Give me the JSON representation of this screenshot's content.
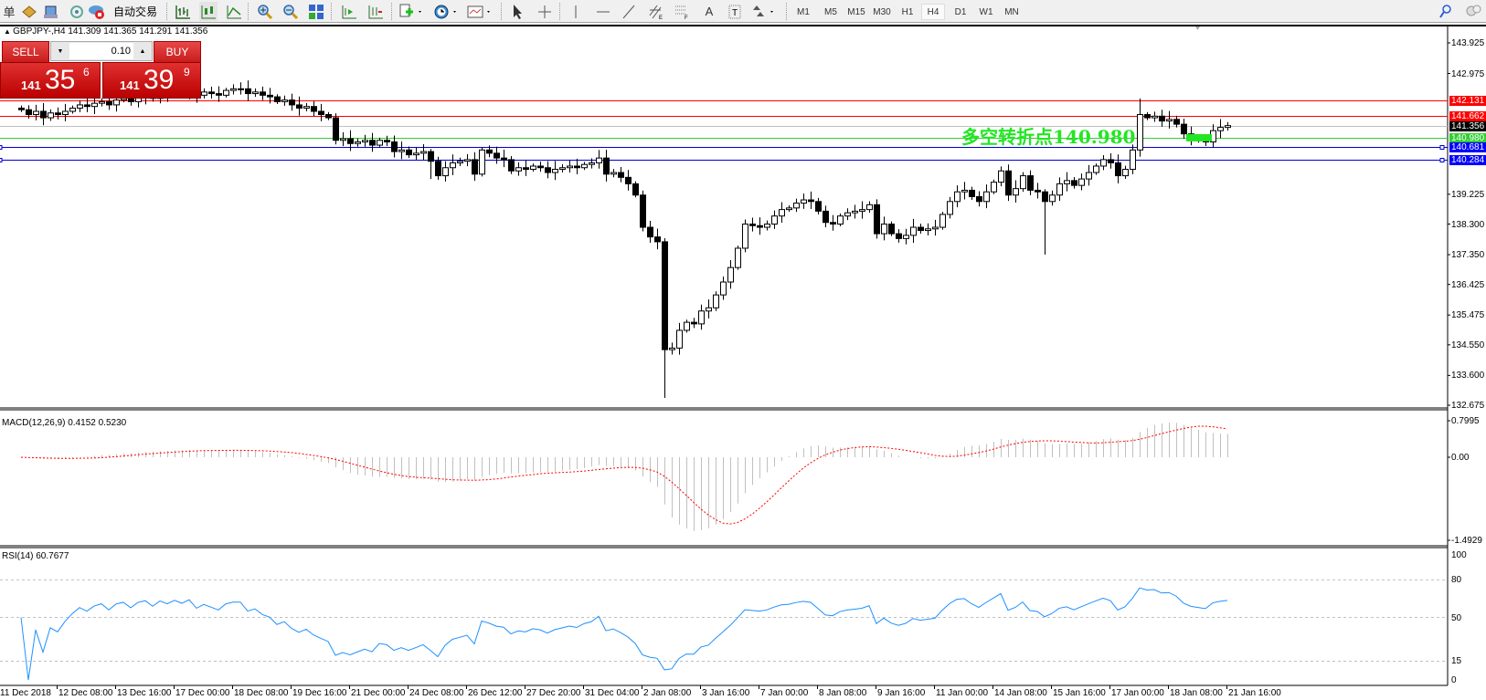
{
  "toolbar": {
    "menu_fragment": "单",
    "auto_trading_label": "自动交易",
    "icons": [
      "folder-icon",
      "profile-icon",
      "signal-icon",
      "auto-trading-icon",
      "bar-chart-icon",
      "candlestick-icon",
      "line-chart-icon",
      "zoom-in-icon",
      "zoom-out-icon",
      "tile-windows-icon",
      "chart-shift-icon",
      "autoscroll-icon",
      "indicators-icon",
      "periodicity-icon",
      "templates-icon",
      "cursor-icon",
      "crosshair-icon",
      "vertical-line-icon",
      "horizontal-line-icon",
      "trendline-icon",
      "channel-icon",
      "fibonacci-icon",
      "text-icon",
      "text-label-icon",
      "arrows-icon",
      "search-icon",
      "community-icon"
    ],
    "periods": [
      "M1",
      "M5",
      "M15",
      "M30",
      "H1",
      "H4",
      "D1",
      "W1",
      "MN"
    ],
    "active_period": "H4"
  },
  "chart": {
    "title": "GBPJPY-,H4  141.309 141.365 141.291 141.356",
    "trade_panel": {
      "sell_label": "SELL",
      "buy_label": "BUY",
      "lot": "0.10",
      "sell_price": {
        "big": "141",
        "main": "35",
        "pip": "6"
      },
      "buy_price": {
        "big": "141",
        "main": "39",
        "pip": "9"
      }
    },
    "pivot_text": "多空转折点140.980",
    "pivot_price": 140.98,
    "price_axis": {
      "max": 143.925,
      "min": 132.675,
      "ticks": [
        "143.925",
        "142.975",
        "139.225",
        "138.300",
        "137.350",
        "136.425",
        "135.475",
        "134.550",
        "133.600",
        "132.675"
      ]
    },
    "lines": [
      {
        "price": 142.131,
        "label": "142.131",
        "color": "#ff0000",
        "bg": "#ff0000"
      },
      {
        "price": 141.662,
        "label": "141.662",
        "color": "#ff0000",
        "bg": "#ff0000"
      },
      {
        "price": 141.356,
        "label": "141.356",
        "color": "#c0c0c0",
        "bg": "#000000"
      },
      {
        "price": 140.98,
        "label": "140.980",
        "color": "#32cd32",
        "bg": "#32cd32"
      },
      {
        "price": 140.681,
        "label": "140.681",
        "color": "#0000cc",
        "bg": "#0000ff"
      },
      {
        "price": 140.284,
        "label": "140.284",
        "color": "#0000cc",
        "bg": "#0000ff"
      }
    ],
    "closes": [
      141.85,
      141.7,
      141.8,
      141.6,
      141.75,
      141.7,
      141.8,
      141.9,
      142.0,
      141.95,
      142.05,
      142.1,
      142.0,
      142.15,
      142.2,
      142.1,
      142.25,
      142.3,
      142.2,
      142.35,
      142.3,
      142.4,
      142.35,
      142.45,
      142.3,
      142.4,
      142.35,
      142.3,
      142.45,
      142.5,
      142.5,
      142.35,
      142.4,
      142.3,
      142.25,
      142.1,
      142.15,
      142.0,
      141.9,
      141.95,
      141.8,
      141.7,
      141.6,
      140.9,
      140.95,
      140.8,
      140.85,
      140.9,
      140.75,
      140.9,
      140.85,
      140.55,
      140.6,
      140.45,
      140.5,
      140.55,
      140.25,
      139.8,
      140.05,
      140.2,
      140.25,
      140.3,
      139.85,
      140.6,
      140.5,
      140.35,
      140.3,
      139.95,
      140.05,
      140.0,
      140.1,
      140.05,
      139.9,
      140.0,
      140.05,
      140.1,
      140.05,
      140.15,
      140.2,
      140.35,
      139.85,
      139.9,
      139.75,
      139.55,
      139.2,
      138.2,
      137.9,
      137.75,
      134.4,
      134.45,
      135.0,
      135.25,
      135.2,
      135.6,
      135.7,
      136.1,
      136.5,
      136.95,
      137.55,
      138.3,
      138.25,
      138.2,
      138.3,
      138.55,
      138.75,
      138.8,
      138.95,
      139.05,
      139.0,
      138.7,
      138.35,
      138.3,
      138.55,
      138.65,
      138.7,
      138.75,
      138.9,
      138.0,
      138.3,
      138.0,
      137.85,
      137.95,
      138.2,
      138.1,
      138.15,
      138.2,
      138.6,
      139.0,
      139.3,
      139.35,
      139.15,
      139.0,
      139.3,
      139.6,
      139.95,
      139.2,
      139.4,
      139.8,
      139.35,
      139.3,
      139.0,
      139.2,
      139.55,
      139.65,
      139.5,
      139.7,
      139.9,
      140.1,
      140.3,
      140.2,
      139.8,
      140.0,
      140.6,
      141.7,
      141.6,
      141.65,
      141.5,
      141.55,
      141.4,
      141.1,
      140.95,
      140.9,
      140.85,
      141.2,
      141.3,
      141.356
    ],
    "extremes": [
      {
        "i": 88,
        "low": 132.9
      },
      {
        "i": 140,
        "low": 137.35
      },
      {
        "i": 153,
        "high": 142.2
      },
      {
        "i": 79,
        "high": 140.6
      },
      {
        "i": 56,
        "low": 139.7
      }
    ]
  },
  "macd": {
    "title": "MACD(12,26,9) 0.4152 0.5230",
    "axis": [
      "0.7995",
      "0.00",
      "-1.4929"
    ],
    "hist_color": "#c0c0c0",
    "signal_color": "#ff0000"
  },
  "rsi": {
    "title": "RSI(14) 60.7677",
    "levels": [
      "100",
      "80",
      "50",
      "15",
      "0"
    ],
    "color": "#1e90ff"
  },
  "time_axis": [
    "11 Dec 2018",
    "12 Dec 08:00",
    "13 Dec 16:00",
    "17 Dec 00:00",
    "18 Dec 08:00",
    "19 Dec 16:00",
    "21 Dec 00:00",
    "24 Dec 08:00",
    "26 Dec 12:00",
    "27 Dec 20:00",
    "31 Dec 04:00",
    "2 Jan 08:00",
    "3 Jan 16:00",
    "7 Jan 00:00",
    "8 Jan 08:00",
    "9 Jan 16:00",
    "11 Jan 00:00",
    "14 Jan 08:00",
    "15 Jan 16:00",
    "17 Jan 00:00",
    "18 Jan 08:00",
    "21 Jan 16:00"
  ]
}
